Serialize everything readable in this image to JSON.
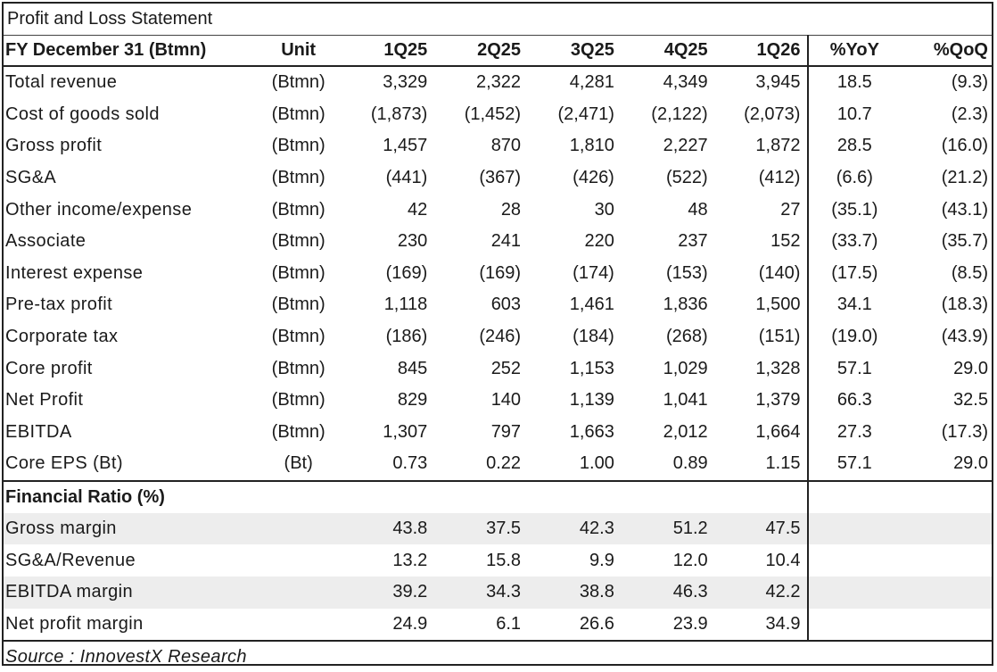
{
  "title": "Profit and Loss Statement",
  "header": {
    "label": "FY December 31 (Btmn)",
    "unit": "Unit",
    "periods": [
      "1Q25",
      "2Q25",
      "3Q25",
      "4Q25",
      "1Q26"
    ],
    "yoy": "%YoY",
    "qoq": "%QoQ"
  },
  "rows": [
    {
      "label": "Total revenue",
      "unit": "(Btmn)",
      "values": [
        "3,329",
        "2,322",
        "4,281",
        "4,349",
        "3,945"
      ],
      "yoy": "18.5",
      "qoq": "(9.3)"
    },
    {
      "label": "Cost of goods sold",
      "unit": "(Btmn)",
      "values": [
        "(1,873)",
        "(1,452)",
        "(2,471)",
        "(2,122)",
        "(2,073)"
      ],
      "yoy": "10.7",
      "qoq": "(2.3)"
    },
    {
      "label": "Gross profit",
      "unit": "(Btmn)",
      "values": [
        "1,457",
        "870",
        "1,810",
        "2,227",
        "1,872"
      ],
      "yoy": "28.5",
      "qoq": "(16.0)"
    },
    {
      "label": "SG&A",
      "unit": "(Btmn)",
      "values": [
        "(441)",
        "(367)",
        "(426)",
        "(522)",
        "(412)"
      ],
      "yoy": "(6.6)",
      "qoq": "(21.2)"
    },
    {
      "label": "Other income/expense",
      "unit": "(Btmn)",
      "values": [
        "42",
        "28",
        "30",
        "48",
        "27"
      ],
      "yoy": "(35.1)",
      "qoq": "(43.1)"
    },
    {
      "label": "Associate",
      "unit": "(Btmn)",
      "values": [
        "230",
        "241",
        "220",
        "237",
        "152"
      ],
      "yoy": "(33.7)",
      "qoq": "(35.7)"
    },
    {
      "label": "Interest expense",
      "unit": "(Btmn)",
      "values": [
        "(169)",
        "(169)",
        "(174)",
        "(153)",
        "(140)"
      ],
      "yoy": "(17.5)",
      "qoq": "(8.5)"
    },
    {
      "label": "Pre-tax profit",
      "unit": "(Btmn)",
      "values": [
        "1,118",
        "603",
        "1,461",
        "1,836",
        "1,500"
      ],
      "yoy": "34.1",
      "qoq": "(18.3)"
    },
    {
      "label": "Corporate tax",
      "unit": "(Btmn)",
      "values": [
        "(186)",
        "(246)",
        "(184)",
        "(268)",
        "(151)"
      ],
      "yoy": "(19.0)",
      "qoq": "(43.9)"
    },
    {
      "label": "Core profit",
      "unit": "(Btmn)",
      "values": [
        "845",
        "252",
        "1,153",
        "1,029",
        "1,328"
      ],
      "yoy": "57.1",
      "qoq": "29.0"
    },
    {
      "label": "Net Profit",
      "unit": "(Btmn)",
      "values": [
        "829",
        "140",
        "1,139",
        "1,041",
        "1,379"
      ],
      "yoy": "66.3",
      "qoq": "32.5"
    },
    {
      "label": "EBITDA",
      "unit": "(Btmn)",
      "values": [
        "1,307",
        "797",
        "1,663",
        "2,012",
        "1,664"
      ],
      "yoy": "27.3",
      "qoq": "(17.3)"
    },
    {
      "label": "Core EPS (Bt)",
      "unit": "(Bt)",
      "values": [
        "0.73",
        "0.22",
        "1.00",
        "0.89",
        "1.15"
      ],
      "yoy": "57.1",
      "qoq": "29.0"
    }
  ],
  "ratio_header": "Financial Ratio (%)",
  "ratios": [
    {
      "label": "Gross margin",
      "values": [
        "43.8",
        "37.5",
        "42.3",
        "51.2",
        "47.5"
      ]
    },
    {
      "label": "SG&A/Revenue",
      "values": [
        "13.2",
        "15.8",
        "9.9",
        "12.0",
        "10.4"
      ]
    },
    {
      "label": "EBITDA margin",
      "values": [
        "39.2",
        "34.3",
        "38.8",
        "46.3",
        "42.2"
      ]
    },
    {
      "label": "Net profit margin",
      "values": [
        "24.9",
        "6.1",
        "26.6",
        "23.9",
        "34.9"
      ]
    }
  ],
  "source": "Source : InnovestX Research",
  "colors": {
    "border": "#222222",
    "shade": "#ededed",
    "text": "#1a1a1a"
  }
}
